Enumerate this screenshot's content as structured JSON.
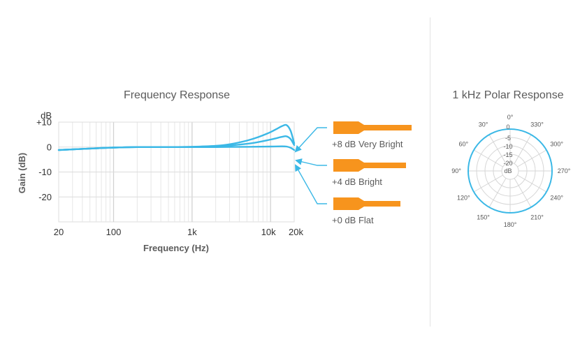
{
  "chart_data": [
    {
      "type": "line",
      "title": "Frequency Response",
      "xlabel": "Frequency (Hz)",
      "ylabel": "Gain (dB)",
      "xscale": "log",
      "xlim": [
        20,
        20000
      ],
      "ylim": [
        -30,
        10
      ],
      "x_ticks": [
        "20",
        "100",
        "1k",
        "10k",
        "20k"
      ],
      "y_ticks": [
        "dB",
        "+10",
        "0",
        "-10",
        "-20"
      ],
      "grid": true,
      "line_color": "#3bb8e6",
      "series": [
        {
          "name": "+8 dB Very Bright",
          "x": [
            20,
            50,
            100,
            200,
            500,
            1000,
            2000,
            3000,
            5000,
            7000,
            10000,
            12000,
            14000,
            16000,
            18000,
            20000
          ],
          "y": [
            -1.2,
            -0.6,
            -0.2,
            0,
            0,
            0.1,
            0.5,
            1.1,
            2.6,
            4.0,
            6.0,
            7.3,
            8.4,
            8.8,
            6.5,
            1.5
          ]
        },
        {
          "name": "+4 dB Bright",
          "x": [
            20,
            50,
            100,
            200,
            500,
            1000,
            2000,
            3000,
            5000,
            7000,
            10000,
            12000,
            14000,
            16000,
            18000,
            20000
          ],
          "y": [
            -1.2,
            -0.6,
            -0.2,
            0,
            0,
            0.1,
            0.3,
            0.6,
            1.3,
            2.0,
            3.0,
            3.6,
            4.1,
            4.3,
            3.2,
            0.8
          ]
        },
        {
          "name": "+0 dB Flat",
          "x": [
            20,
            50,
            100,
            200,
            500,
            1000,
            2000,
            5000,
            10000,
            14000,
            16000,
            18000,
            20000
          ],
          "y": [
            -1.2,
            -0.6,
            -0.2,
            0,
            0,
            0,
            0,
            0.1,
            0.2,
            0.3,
            0.2,
            -0.3,
            -1.2
          ]
        }
      ],
      "callouts": [
        "+8 dB Very Bright",
        "+4 dB Bright",
        "+0 dB Flat"
      ],
      "callout_color": "#f7941d"
    },
    {
      "type": "polar",
      "title": "1 kHz Polar Response",
      "angle_ticks": [
        "0°",
        "30°",
        "60°",
        "90°",
        "120°",
        "150°",
        "180°",
        "210°",
        "240°",
        "270°",
        "300°",
        "330°"
      ],
      "radial_ticks": [
        "0",
        "-5",
        "-10",
        "-15",
        "-20"
      ],
      "radial_unit": "dB",
      "radial_range": [
        -25,
        0
      ],
      "pattern": "omnidirectional",
      "pattern_level_db": 0,
      "line_color": "#3bb8e6"
    }
  ]
}
